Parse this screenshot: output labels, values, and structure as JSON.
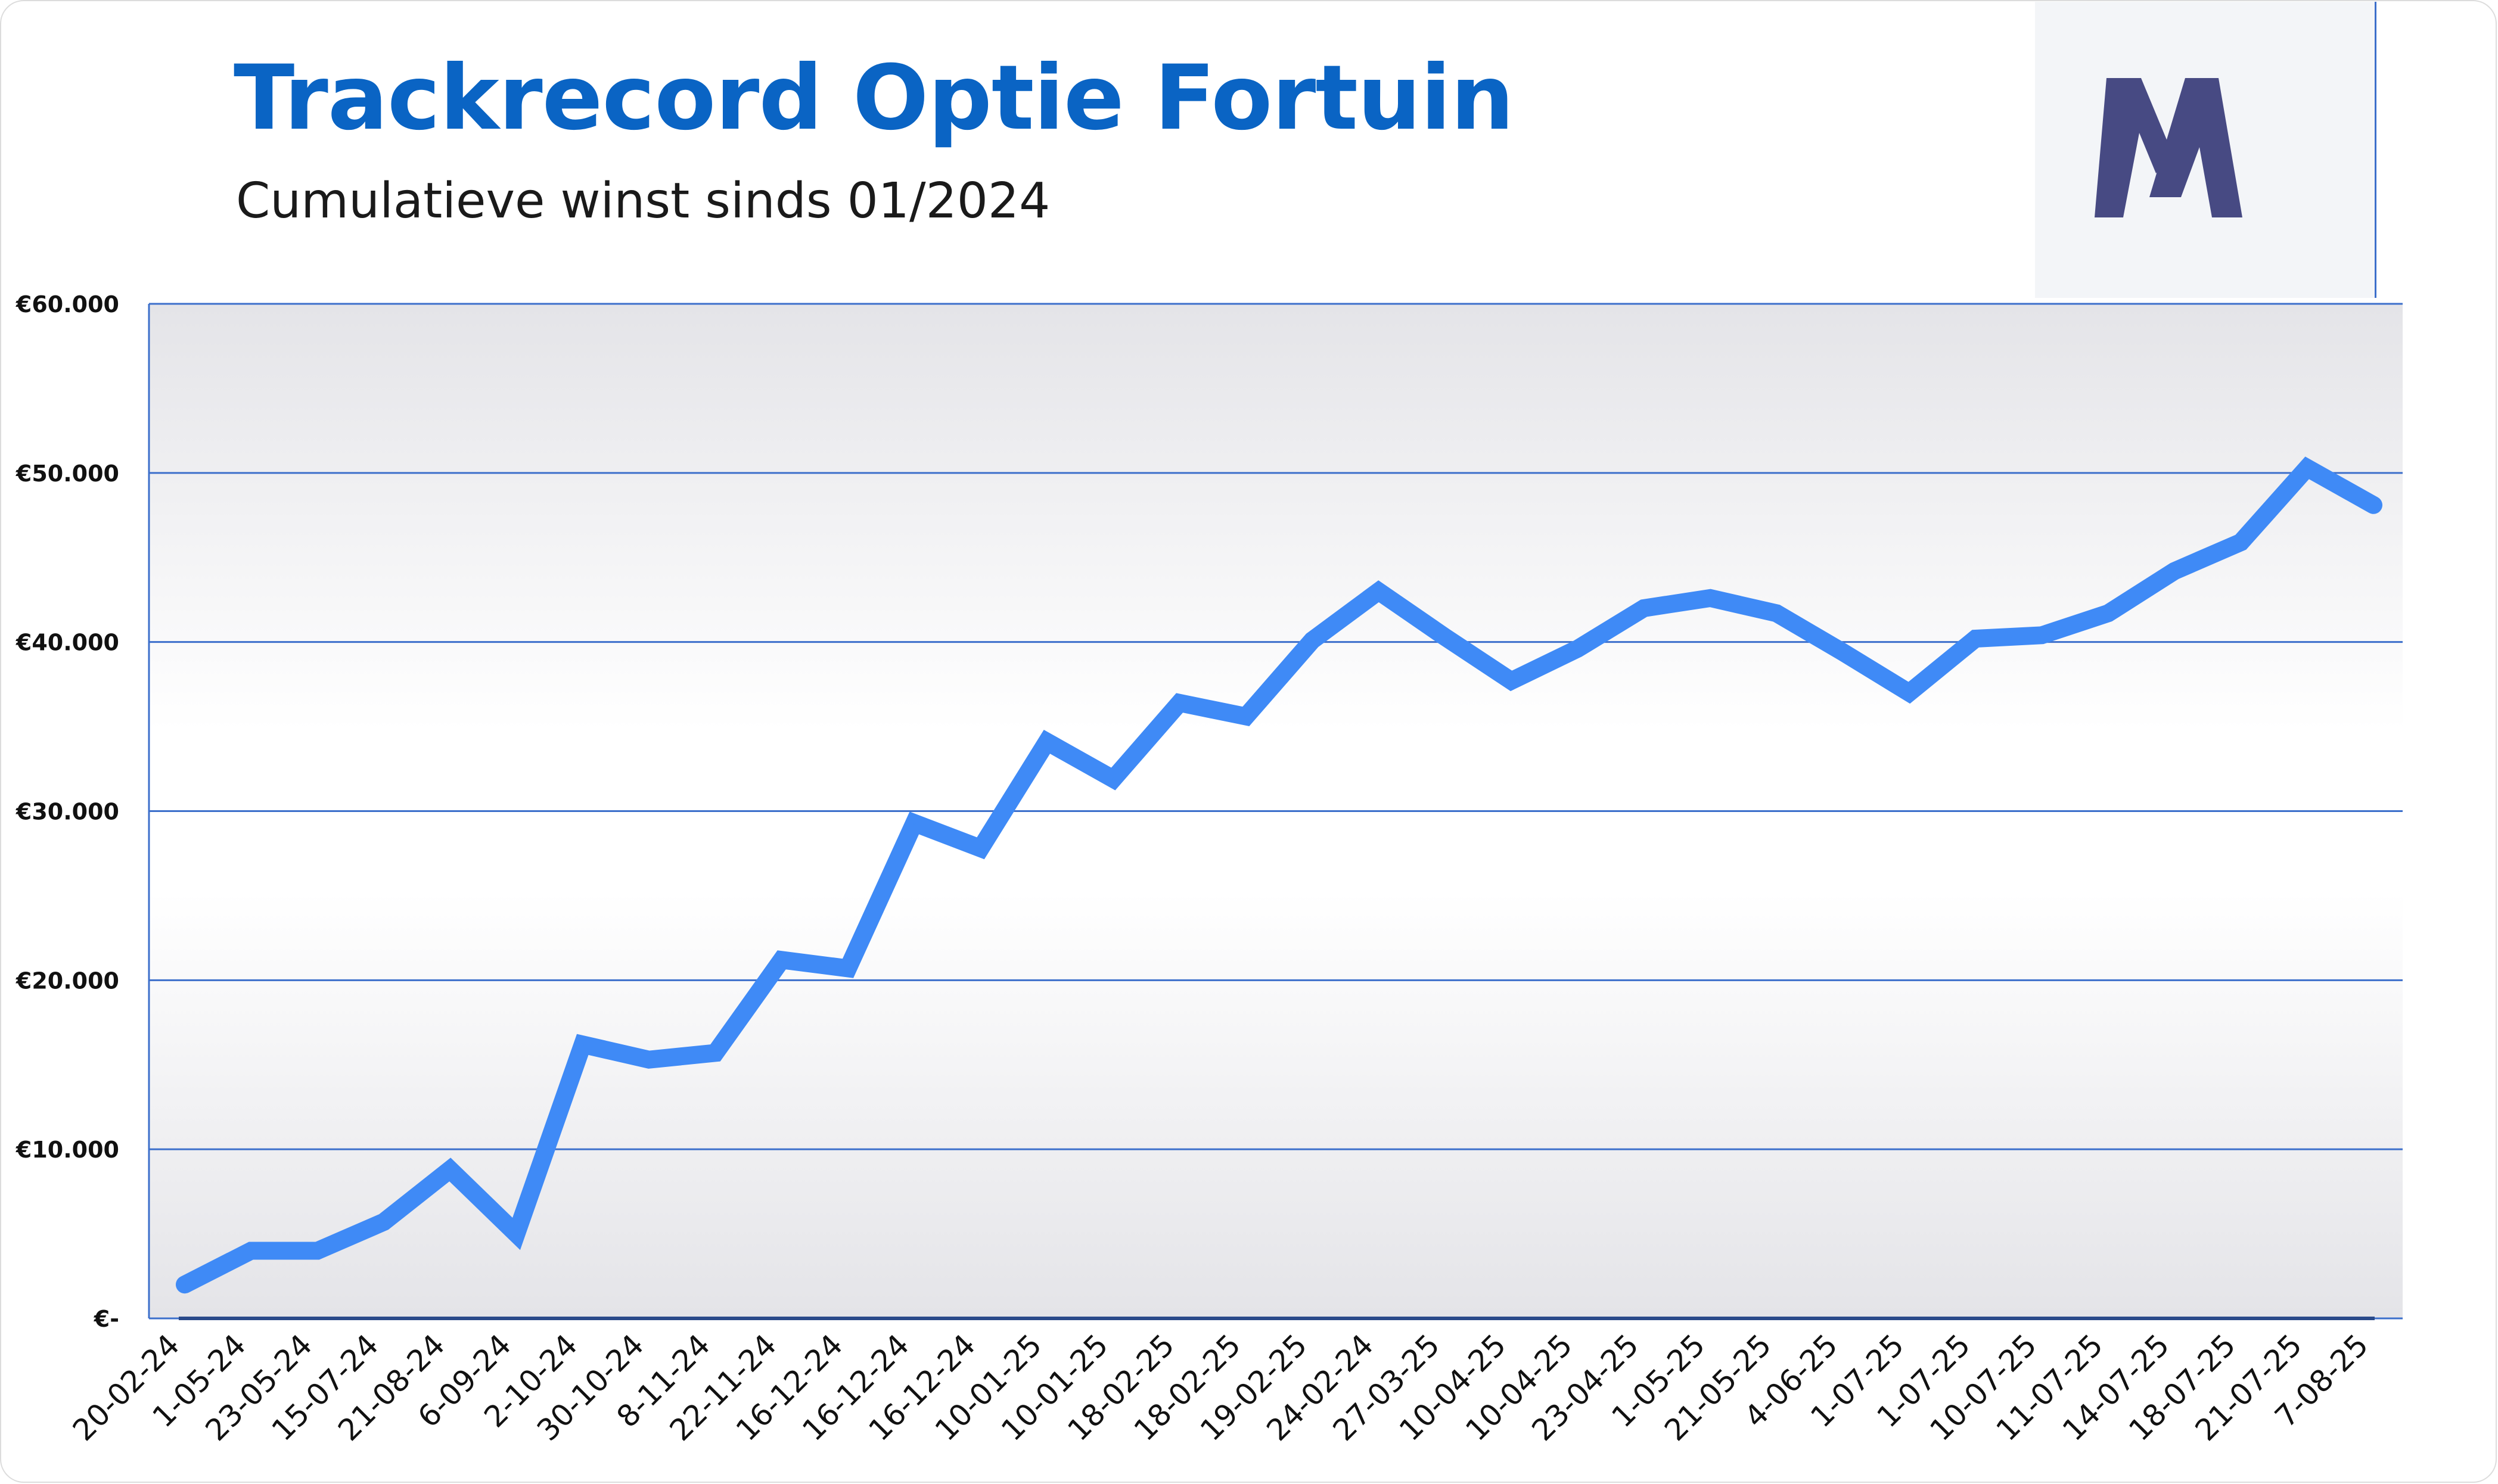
{
  "title": "Trackrecord Optie Fortuin",
  "subtitle": "Cumulatieve winst sinds 01/2024",
  "logo": {
    "icon": "m-logo-icon",
    "color": "#474a83"
  },
  "colors": {
    "line": "#3f8af6",
    "title": "#0a64c4",
    "grid": "#3c6fcb"
  },
  "chart_data": {
    "type": "line",
    "title": "Trackrecord Optie Fortuin",
    "subtitle": "Cumulatieve winst sinds 01/2024",
    "xlabel": "",
    "ylabel": "",
    "ylim": [
      0,
      60000
    ],
    "yticks": [
      0,
      10000,
      20000,
      30000,
      40000,
      50000,
      60000
    ],
    "ytick_labels": [
      "€-",
      "€10.000",
      "€20.000",
      "€30.000",
      "€40.000",
      "€50.000",
      "€60.000"
    ],
    "grid": true,
    "legend": "none",
    "categories": [
      "20-02-24",
      "1-05-24",
      "23-05-24",
      "15-07-24",
      "21-08-24",
      "6-09-24",
      "2-10-24",
      "30-10-24",
      "8-11-24",
      "22-11-24",
      "16-12-24",
      "16-12-24",
      "16-12-24",
      "10-01-25",
      "10-01-25",
      "18-02-25",
      "18-02-25",
      "19-02-25",
      "24-02-24",
      "27-03-25",
      "10-04-25",
      "10-04-25",
      "23-04-25",
      "1-05-25",
      "21-05-25",
      "4-06-25",
      "1-07-25",
      "1-07-25",
      "10-07-25",
      "11-07-25",
      "14-07-25",
      "18-07-25",
      "21-07-25",
      "7-08-25"
    ],
    "series": [
      {
        "values": [
          2000,
          4000,
          4000,
          5700,
          8800,
          5000,
          16200,
          15300,
          15700,
          21200,
          20700,
          29300,
          27800,
          34100,
          31900,
          36400,
          35600,
          40100,
          43000,
          40300,
          37700,
          39600,
          42000,
          42600,
          41700,
          39400,
          37000,
          40200,
          40400,
          41700,
          44200,
          45900,
          50300,
          48100
        ]
      }
    ]
  }
}
